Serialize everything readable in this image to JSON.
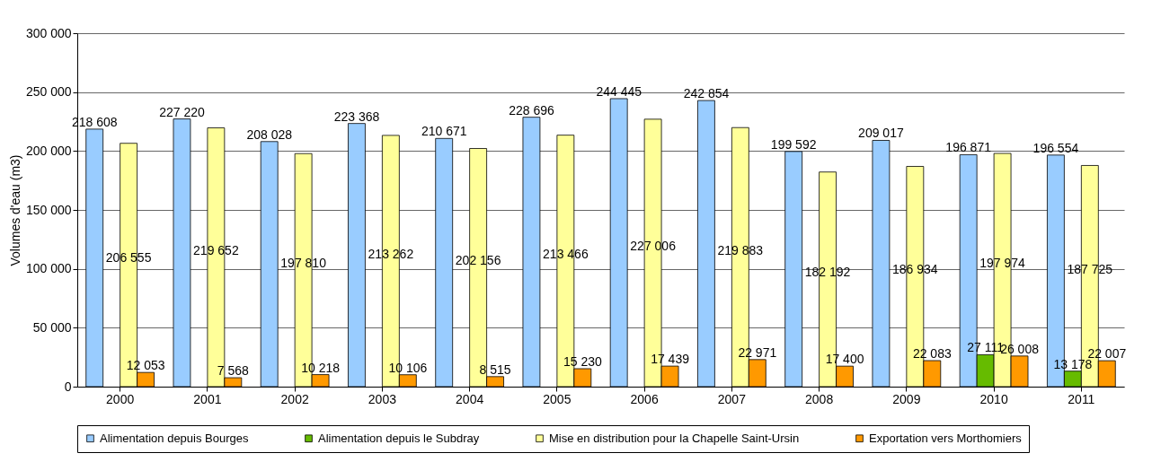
{
  "chart_data": {
    "type": "bar",
    "ylabel": "Volumes d'eau (m3)",
    "categories": [
      "2000",
      "2001",
      "2002",
      "2003",
      "2004",
      "2005",
      "2006",
      "2007",
      "2008",
      "2009",
      "2010",
      "2011"
    ],
    "series": [
      {
        "name": "Alimentation depuis Bourges",
        "color": "#99ccff",
        "values": [
          218608,
          227220,
          208028,
          223368,
          210671,
          228696,
          244445,
          242854,
          199592,
          209017,
          196871,
          196554
        ],
        "value_labels": [
          "218 608",
          "227 220",
          "208 028",
          "223 368",
          "210 671",
          "228 696",
          "244 445",
          "242 854",
          "199 592",
          "209 017",
          "196 871",
          "196 554"
        ]
      },
      {
        "name": "Alimentation depuis le Subdray",
        "color": "#66bb00",
        "values": [
          null,
          null,
          null,
          null,
          null,
          null,
          null,
          null,
          null,
          null,
          27111,
          13178
        ],
        "value_labels": [
          null,
          null,
          null,
          null,
          null,
          null,
          null,
          null,
          null,
          null,
          "27 111",
          "13 178"
        ]
      },
      {
        "name": "Mise en distribution pour la Chapelle Saint-Ursin",
        "color": "#ffff99",
        "values": [
          206555,
          219652,
          197810,
          213262,
          202156,
          213466,
          227006,
          219883,
          182192,
          186934,
          197974,
          187725
        ],
        "value_labels": [
          "206 555",
          "219 652",
          "197 810",
          "213 262",
          "202 156",
          "213 466",
          "227 006",
          "219 883",
          "182 192",
          "186 934",
          "197 974",
          "187 725"
        ]
      },
      {
        "name": "Exportation vers Morthomiers",
        "color": "#ff9900",
        "values": [
          12053,
          7568,
          10218,
          10106,
          8515,
          15230,
          17439,
          22971,
          17400,
          22083,
          26008,
          22007
        ],
        "value_labels": [
          "12 053",
          "7 568",
          "10 218",
          "10 106",
          "8 515",
          "15 230",
          "17 439",
          "22 971",
          "17 400",
          "22 083",
          "26 008",
          "22 007"
        ]
      }
    ],
    "ylim": [
      0,
      300000
    ],
    "yticks": [
      {
        "value": 0,
        "label": "0"
      },
      {
        "value": 50000,
        "label": "50 000"
      },
      {
        "value": 100000,
        "label": "100 000"
      },
      {
        "value": 150000,
        "label": "150 000"
      },
      {
        "value": 200000,
        "label": "200 000"
      },
      {
        "value": 250000,
        "label": "250 000"
      },
      {
        "value": 300000,
        "label": "300 000"
      }
    ],
    "grid": "y",
    "legend": "bottom"
  }
}
